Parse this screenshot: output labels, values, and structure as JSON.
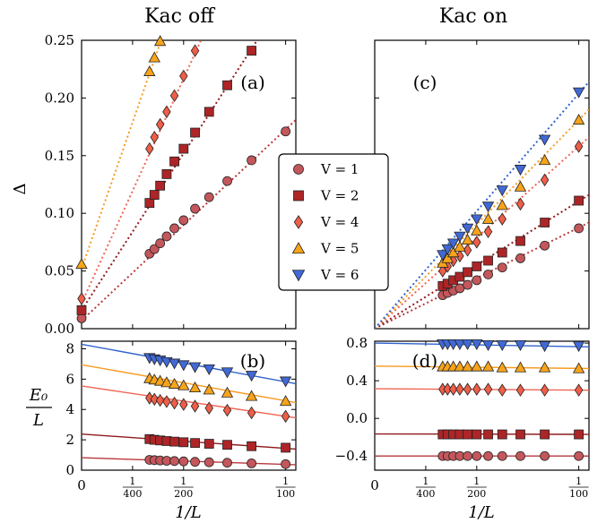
{
  "figure": {
    "column_titles": [
      "Kac off",
      "Kac on"
    ],
    "x_axis_label": "1/L",
    "left_top_ylabel": "Δ",
    "left_bottom_ylabel": {
      "numerator": "E₀",
      "denominator": "L"
    }
  },
  "legend": {
    "entries": [
      {
        "label": "V = 1",
        "marker": "circle",
        "color": "#c4575c"
      },
      {
        "label": "V = 2",
        "marker": "square",
        "color": "#ad2527"
      },
      {
        "label": "V = 4",
        "marker": "diamond",
        "color": "#ef5e48"
      },
      {
        "label": "V = 5",
        "marker": "triangle-up",
        "color": "#f7a41a"
      },
      {
        "label": "V = 6",
        "marker": "triangle-down",
        "color": "#4169d6"
      }
    ]
  },
  "colors": {
    "V1_fill": "#c4575c",
    "V1_line": "#b9383d",
    "V2_fill": "#ad2527",
    "V2_line": "#8f1a1d",
    "V4_fill": "#ef5e48",
    "V4_line": "#ef6655",
    "V5_fill": "#f7a41a",
    "V5_line": "#f79a22",
    "V6_fill": "#4169d6",
    "V6_line": "#2f63cf"
  },
  "chart_data": [
    {
      "type": "scatter",
      "panel_label": "(a)",
      "column": "Kac off",
      "ylabel": "Δ",
      "xlabel": "1/L",
      "xlim": [
        0,
        0.0105
      ],
      "ylim": [
        0,
        0.25
      ],
      "x_ticks": [
        {
          "value": 0,
          "label": "0"
        },
        {
          "value": 0.0025,
          "num": "1",
          "den": "400"
        },
        {
          "value": 0.005,
          "num": "1",
          "den": "200"
        },
        {
          "value": 0.01,
          "num": "1",
          "den": "100"
        }
      ],
      "y_ticks": [
        0.0,
        0.05,
        0.1,
        0.15,
        0.2,
        0.25
      ],
      "y_tick_labels": [
        "0.00",
        "0.05",
        "0.10",
        "0.15",
        "0.20",
        "0.25"
      ],
      "series": [
        {
          "name": "V = 1",
          "marker": "circle",
          "x": [
            0,
            0.00333,
            0.00357,
            0.00385,
            0.00417,
            0.00455,
            0.005,
            0.00556,
            0.00625,
            0.00714,
            0.00833,
            0.01
          ],
          "y": [
            0.009,
            0.065,
            0.069,
            0.074,
            0.08,
            0.087,
            0.094,
            0.104,
            0.114,
            0.128,
            0.146,
            0.171
          ],
          "fit": [
            [
              0,
              0.007
            ],
            [
              0.0105,
              0.181
            ]
          ]
        },
        {
          "name": "V = 2",
          "marker": "square",
          "x": [
            0,
            0.00333,
            0.00357,
            0.00385,
            0.00417,
            0.00455,
            0.005,
            0.00556,
            0.00625,
            0.00714,
            0.00833
          ],
          "y": [
            0.016,
            0.109,
            0.116,
            0.124,
            0.134,
            0.145,
            0.156,
            0.17,
            0.188,
            0.211,
            0.241
          ],
          "fit": [
            [
              0,
              0.016
            ],
            [
              0.0086,
              0.25
            ]
          ]
        },
        {
          "name": "V = 4",
          "marker": "diamond",
          "x": [
            0,
            0.00333,
            0.00357,
            0.00385,
            0.00417,
            0.00455,
            0.005,
            0.00556
          ],
          "y": [
            0.026,
            0.156,
            0.166,
            0.177,
            0.188,
            0.202,
            0.219,
            0.241
          ],
          "fit": [
            [
              0,
              0.022
            ],
            [
              0.00585,
              0.25
            ]
          ]
        },
        {
          "name": "V = 5",
          "marker": "triangle-up",
          "x": [
            0,
            0.00333,
            0.00357,
            0.00385
          ],
          "y": [
            0.056,
            0.223,
            0.235,
            0.25
          ],
          "fit": [
            [
              0,
              0.052
            ],
            [
              0.0039,
              0.25
            ]
          ]
        }
      ]
    },
    {
      "type": "scatter",
      "panel_label": "(b)",
      "column": "Kac off",
      "ylabel": "E₀/L",
      "xlabel": "1/L",
      "xlim": [
        0,
        0.0105
      ],
      "ylim": [
        0,
        8.5
      ],
      "y_ticks": [
        0,
        2,
        4,
        6,
        8
      ],
      "y_tick_labels": [
        "0",
        "2",
        "4",
        "6",
        "8"
      ],
      "series": [
        {
          "name": "V = 1",
          "marker": "circle",
          "x": [
            0.00333,
            0.00357,
            0.00385,
            0.00417,
            0.00455,
            0.005,
            0.00556,
            0.00625,
            0.00714,
            0.00833,
            0.01
          ],
          "y": [
            0.68,
            0.66,
            0.64,
            0.62,
            0.6,
            0.58,
            0.55,
            0.52,
            0.49,
            0.45,
            0.4
          ],
          "fit": [
            [
              0,
              0.82
            ],
            [
              0.0105,
              0.36
            ]
          ]
        },
        {
          "name": "V = 2",
          "marker": "square",
          "x": [
            0.00333,
            0.00357,
            0.00385,
            0.00417,
            0.00455,
            0.005,
            0.00556,
            0.00625,
            0.00714,
            0.00833,
            0.01
          ],
          "y": [
            2.05,
            2.0,
            1.96,
            1.92,
            1.88,
            1.84,
            1.79,
            1.74,
            1.67,
            1.58,
            1.48
          ],
          "fit": [
            [
              0,
              2.38
            ],
            [
              0.0105,
              1.39
            ]
          ]
        },
        {
          "name": "V = 4",
          "marker": "diamond",
          "x": [
            0.00333,
            0.00357,
            0.00385,
            0.00417,
            0.00455,
            0.005,
            0.00556,
            0.00625,
            0.00714,
            0.00833,
            0.01
          ],
          "y": [
            4.75,
            4.67,
            4.6,
            4.52,
            4.42,
            4.33,
            4.22,
            4.09,
            3.95,
            3.78,
            3.55
          ],
          "fit": [
            [
              0,
              5.55
            ],
            [
              0.0105,
              3.45
            ]
          ]
        },
        {
          "name": "V = 5",
          "marker": "triangle-up",
          "x": [
            0.00333,
            0.00357,
            0.00385,
            0.00417,
            0.00455,
            0.005,
            0.00556,
            0.00625,
            0.00714,
            0.00833,
            0.01
          ],
          "y": [
            6.05,
            5.96,
            5.88,
            5.78,
            5.68,
            5.58,
            5.44,
            5.3,
            5.1,
            4.88,
            4.55
          ],
          "fit": [
            [
              0,
              6.95
            ],
            [
              0.0105,
              4.45
            ]
          ]
        },
        {
          "name": "V = 6",
          "marker": "triangle-down",
          "x": [
            0.00333,
            0.00357,
            0.00385,
            0.00417,
            0.00455,
            0.005,
            0.00556,
            0.00625,
            0.00714,
            0.00833,
            0.01
          ],
          "y": [
            7.4,
            7.32,
            7.24,
            7.14,
            7.04,
            6.93,
            6.8,
            6.66,
            6.46,
            6.24,
            5.86
          ],
          "fit": [
            [
              0,
              8.3
            ],
            [
              0.0105,
              5.7
            ]
          ]
        }
      ]
    },
    {
      "type": "scatter",
      "panel_label": "(c)",
      "column": "Kac on",
      "xlabel": "1/L",
      "xlim": [
        0,
        0.0105
      ],
      "ylim": [
        0,
        0.25
      ],
      "series": [
        {
          "name": "V = 1",
          "marker": "circle",
          "x": [
            0.00333,
            0.00357,
            0.00385,
            0.00417,
            0.00455,
            0.005,
            0.00556,
            0.00625,
            0.00714,
            0.00833,
            0.01
          ],
          "y": [
            0.029,
            0.031,
            0.033,
            0.035,
            0.038,
            0.042,
            0.047,
            0.053,
            0.061,
            0.072,
            0.087
          ],
          "fit": [
            [
              0,
              0.0
            ],
            [
              0.0105,
              0.092
            ]
          ]
        },
        {
          "name": "V = 2",
          "marker": "square",
          "x": [
            0.00333,
            0.00357,
            0.00385,
            0.00417,
            0.00455,
            0.005,
            0.00556,
            0.00625,
            0.00714,
            0.00833,
            0.01
          ],
          "y": [
            0.037,
            0.039,
            0.042,
            0.045,
            0.049,
            0.054,
            0.059,
            0.066,
            0.076,
            0.092,
            0.111
          ],
          "fit": [
            [
              0,
              0.0
            ],
            [
              0.0105,
              0.116
            ]
          ]
        },
        {
          "name": "V = 4",
          "marker": "diamond",
          "x": [
            0.00333,
            0.00357,
            0.00385,
            0.00417,
            0.00455,
            0.005,
            0.00556,
            0.00625,
            0.00714,
            0.00833,
            0.01
          ],
          "y": [
            0.05,
            0.054,
            0.059,
            0.063,
            0.068,
            0.075,
            0.084,
            0.095,
            0.108,
            0.129,
            0.158
          ],
          "fit": [
            [
              0,
              0.0
            ],
            [
              0.0105,
              0.166
            ]
          ]
        },
        {
          "name": "V = 5",
          "marker": "triangle-up",
          "x": [
            0.00333,
            0.00357,
            0.00385,
            0.00417,
            0.00455,
            0.005,
            0.00556,
            0.00625,
            0.00714,
            0.00833,
            0.01
          ],
          "y": [
            0.057,
            0.061,
            0.066,
            0.071,
            0.077,
            0.085,
            0.095,
            0.107,
            0.123,
            0.146,
            0.181
          ],
          "fit": [
            [
              0,
              0.0
            ],
            [
              0.0105,
              0.19
            ]
          ]
        },
        {
          "name": "V = 6",
          "marker": "triangle-down",
          "x": [
            0.00333,
            0.00357,
            0.00385,
            0.00417,
            0.00455,
            0.005,
            0.00556,
            0.00625,
            0.00714,
            0.00833,
            0.01
          ],
          "y": [
            0.064,
            0.069,
            0.074,
            0.08,
            0.087,
            0.095,
            0.106,
            0.12,
            0.138,
            0.164,
            0.205
          ],
          "fit": [
            [
              0,
              0.0
            ],
            [
              0.0105,
              0.214
            ]
          ]
        }
      ]
    },
    {
      "type": "scatter",
      "panel_label": "(d)",
      "column": "Kac on",
      "xlabel": "1/L",
      "xlim": [
        0,
        0.0105
      ],
      "ylim": [
        -0.55,
        0.82
      ],
      "y_ticks": [
        -0.4,
        0.0,
        0.4,
        0.8
      ],
      "y_tick_labels": [
        "−0.4",
        "0.0",
        "0.4",
        "0.8"
      ],
      "series": [
        {
          "name": "V = 1",
          "marker": "circle",
          "x": [
            0.00333,
            0.00357,
            0.00385,
            0.00417,
            0.00455,
            0.005,
            0.00556,
            0.00625,
            0.00714,
            0.00833,
            0.01
          ],
          "y": [
            -0.4,
            -0.4,
            -0.4,
            -0.4,
            -0.4,
            -0.4,
            -0.4,
            -0.4,
            -0.4,
            -0.4,
            -0.4
          ],
          "fit": [
            [
              0,
              -0.4
            ],
            [
              0.0105,
              -0.4
            ]
          ]
        },
        {
          "name": "V = 2",
          "marker": "square",
          "x": [
            0.00333,
            0.00357,
            0.00385,
            0.00417,
            0.00455,
            0.005,
            0.00556,
            0.00625,
            0.00714,
            0.00833,
            0.01
          ],
          "y": [
            -0.17,
            -0.17,
            -0.17,
            -0.17,
            -0.17,
            -0.17,
            -0.17,
            -0.17,
            -0.17,
            -0.17,
            -0.17
          ],
          "fit": [
            [
              0,
              -0.165
            ],
            [
              0.0105,
              -0.17
            ]
          ]
        },
        {
          "name": "V = 4",
          "marker": "diamond",
          "x": [
            0.00333,
            0.00357,
            0.00385,
            0.00417,
            0.00455,
            0.005,
            0.00556,
            0.00625,
            0.00714,
            0.00833,
            0.01
          ],
          "y": [
            0.31,
            0.31,
            0.31,
            0.31,
            0.31,
            0.31,
            0.31,
            0.3,
            0.3,
            0.3,
            0.3
          ],
          "fit": [
            [
              0,
              0.315
            ],
            [
              0.0105,
              0.3
            ]
          ]
        },
        {
          "name": "V = 5",
          "marker": "triangle-up",
          "x": [
            0.00333,
            0.00357,
            0.00385,
            0.00417,
            0.00455,
            0.005,
            0.00556,
            0.00625,
            0.00714,
            0.00833,
            0.01
          ],
          "y": [
            0.55,
            0.55,
            0.55,
            0.55,
            0.55,
            0.55,
            0.55,
            0.54,
            0.54,
            0.54,
            0.53
          ],
          "fit": [
            [
              0,
              0.555
            ],
            [
              0.0105,
              0.53
            ]
          ]
        },
        {
          "name": "V = 6",
          "marker": "triangle-down",
          "x": [
            0.00333,
            0.00357,
            0.00385,
            0.00417,
            0.00455,
            0.005,
            0.00556,
            0.00625,
            0.00714,
            0.00833,
            0.01
          ],
          "y": [
            0.79,
            0.79,
            0.79,
            0.79,
            0.79,
            0.79,
            0.78,
            0.78,
            0.78,
            0.77,
            0.77
          ],
          "fit": [
            [
              0,
              0.8
            ],
            [
              0.0105,
              0.76
            ]
          ]
        }
      ]
    }
  ]
}
